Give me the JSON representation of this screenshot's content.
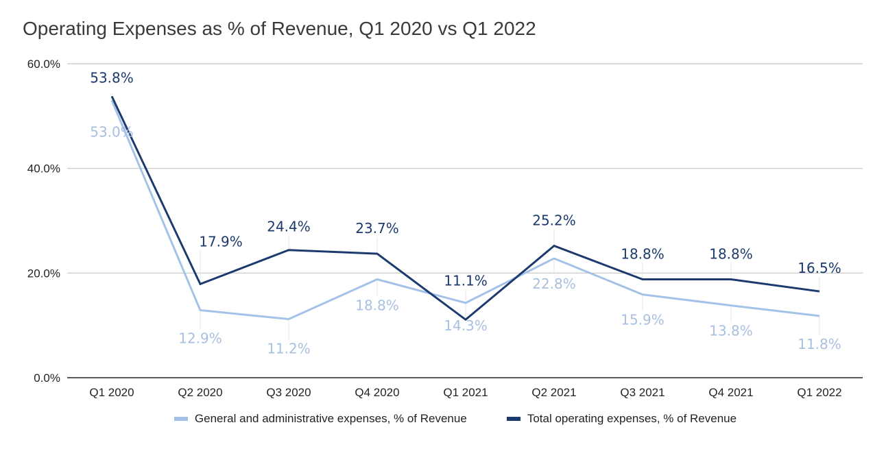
{
  "chart_data": {
    "type": "line",
    "title": "Operating Expenses as % of Revenue, Q1 2020 vs Q1 2022",
    "xlabel": "",
    "ylabel": "",
    "categories": [
      "Q1 2020",
      "Q2 2020",
      "Q3 2020",
      "Q4 2020",
      "Q1 2021",
      "Q2 2021",
      "Q3 2021",
      "Q4 2021",
      "Q1 2022"
    ],
    "ylim": [
      0,
      60
    ],
    "yticks": [
      0,
      20,
      40,
      60
    ],
    "ytick_labels": [
      "0.0%",
      "20.0%",
      "40.0%",
      "60.0%"
    ],
    "grid": true,
    "legend_position": "bottom",
    "series": [
      {
        "name": "General and administrative expenses, % of Revenue",
        "color": "#a4c2e8",
        "values": [
          53.0,
          12.9,
          11.2,
          18.8,
          14.3,
          22.8,
          15.9,
          13.8,
          11.8
        ],
        "labels": [
          "53.0%",
          "12.9%",
          "11.2%",
          "18.8%",
          "14.3%",
          "22.8%",
          "15.9%",
          "13.8%",
          "11.8%"
        ]
      },
      {
        "name": "Total operating expenses, % of Revenue",
        "color": "#1c3a6e",
        "values": [
          53.8,
          17.9,
          24.4,
          23.7,
          11.1,
          25.2,
          18.8,
          18.8,
          16.5
        ],
        "labels": [
          "53.8%",
          "17.9%",
          "24.4%",
          "23.7%",
          "11.1%",
          "25.2%",
          "18.8%",
          "18.8%",
          "16.5%"
        ]
      }
    ]
  }
}
